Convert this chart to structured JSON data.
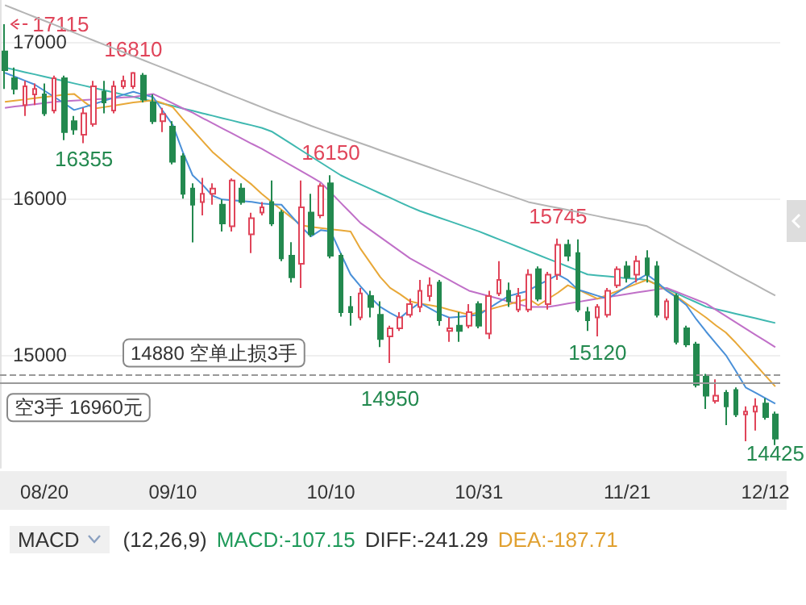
{
  "chart_data": {
    "type": "candlestick",
    "categories": [
      null,
      null,
      null,
      null,
      "08/20",
      null,
      null,
      null,
      null,
      null,
      null,
      null,
      null,
      null,
      null,
      null,
      null,
      "09/10",
      null,
      null,
      null,
      null,
      null,
      null,
      null,
      null,
      null,
      null,
      null,
      null,
      null,
      null,
      null,
      "10/10",
      null,
      null,
      null,
      null,
      null,
      null,
      null,
      null,
      null,
      null,
      null,
      null,
      null,
      null,
      "10/31",
      null,
      null,
      null,
      null,
      null,
      null,
      null,
      null,
      null,
      null,
      null,
      null,
      null,
      null,
      "11/21",
      null,
      null,
      null,
      null,
      null,
      null,
      null,
      null,
      null,
      null,
      null,
      null,
      null,
      "12/12",
      null
    ],
    "ohlc": [
      [
        16941,
        17115,
        16701,
        16821
      ],
      [
        16770,
        16838,
        16667,
        16701
      ],
      [
        16598,
        16753,
        16529,
        16718
      ],
      [
        16667,
        16736,
        16598,
        16701
      ],
      [
        16667,
        16736,
        16529,
        16546
      ],
      [
        16564,
        16787,
        16546,
        16770
      ],
      [
        16770,
        16787,
        16374,
        16426
      ],
      [
        16495,
        16529,
        16409,
        16443
      ],
      [
        16409,
        16581,
        16355,
        16546
      ],
      [
        16478,
        16753,
        16460,
        16718
      ],
      [
        16684,
        16753,
        16546,
        16615
      ],
      [
        16564,
        16753,
        16546,
        16718
      ],
      [
        16718,
        16787,
        16701,
        16753
      ],
      [
        16718,
        16810,
        16701,
        16804
      ],
      [
        16787,
        16804,
        16615,
        16633
      ],
      [
        16615,
        16667,
        16478,
        16495
      ],
      [
        16495,
        16581,
        16426,
        16540
      ],
      [
        16460,
        16495,
        16220,
        16237
      ],
      [
        16271,
        16290,
        16000,
        16031
      ],
      [
        16065,
        16099,
        15721,
        15962
      ],
      [
        15979,
        16133,
        15893,
        16031
      ],
      [
        16031,
        16099,
        15962,
        16065
      ],
      [
        15962,
        15996,
        15790,
        15842
      ],
      [
        15824,
        16130,
        15790,
        16117
      ],
      [
        16065,
        16099,
        15962,
        15979
      ],
      [
        15773,
        15910,
        15652,
        15876
      ],
      [
        15911,
        15979,
        15893,
        15945
      ],
      [
        15979,
        16117,
        15825,
        15842
      ],
      [
        15911,
        15928,
        15601,
        15619
      ],
      [
        15636,
        15722,
        15464,
        15498
      ],
      [
        15584,
        16117,
        15430,
        15945
      ],
      [
        15911,
        16031,
        15756,
        15773
      ],
      [
        15893,
        16099,
        15876,
        16082
      ],
      [
        16099,
        16150,
        15619,
        15636
      ],
      [
        15636,
        15653,
        15247,
        15275
      ],
      [
        15309,
        15378,
        15189,
        15275
      ],
      [
        15241,
        15430,
        15223,
        15395
      ],
      [
        15378,
        15412,
        15241,
        15309
      ],
      [
        15258,
        15344,
        15052,
        15103
      ],
      [
        15120,
        15189,
        14950,
        15172
      ],
      [
        15172,
        15275,
        15155,
        15241
      ],
      [
        15258,
        15361,
        15241,
        15327
      ],
      [
        15309,
        15481,
        15275,
        15412
      ],
      [
        15378,
        15498,
        15344,
        15447
      ],
      [
        15464,
        15481,
        15189,
        15223
      ],
      [
        15155,
        15241,
        15086,
        15172
      ],
      [
        15189,
        15275,
        15086,
        15155
      ],
      [
        15189,
        15327,
        15172,
        15275
      ],
      [
        15327,
        15344,
        15172,
        15189
      ],
      [
        15138,
        15412,
        15103,
        15378
      ],
      [
        15395,
        15601,
        15378,
        15481
      ],
      [
        15412,
        15464,
        15309,
        15344
      ],
      [
        15292,
        15430,
        15275,
        15378
      ],
      [
        15292,
        15550,
        15275,
        15515
      ],
      [
        15550,
        15567,
        15344,
        15361
      ],
      [
        15327,
        15533,
        15292,
        15515
      ],
      [
        15515,
        15745,
        15481,
        15705
      ],
      [
        15705,
        15739,
        15601,
        15636
      ],
      [
        15653,
        15740,
        15275,
        15292
      ],
      [
        15275,
        15309,
        15155,
        15223
      ],
      [
        15241,
        15327,
        15120,
        15309
      ],
      [
        15258,
        15430,
        15241,
        15412
      ],
      [
        15447,
        15567,
        15430,
        15550
      ],
      [
        15567,
        15601,
        15464,
        15498
      ],
      [
        15515,
        15636,
        15464,
        15601
      ],
      [
        15619,
        15670,
        15464,
        15515
      ],
      [
        15567,
        15601,
        15241,
        15258
      ],
      [
        15241,
        15361,
        15223,
        15344
      ],
      [
        15378,
        15395,
        15069,
        15086
      ],
      [
        15172,
        15189,
        15052,
        15069
      ],
      [
        15069,
        15086,
        14794,
        14811
      ],
      [
        14862,
        14880,
        14656,
        14742
      ],
      [
        14708,
        14846,
        14691,
        14742
      ],
      [
        14760,
        14777,
        14553,
        14673
      ],
      [
        14777,
        14794,
        14605,
        14622
      ],
      [
        14622,
        14673,
        14450,
        14639
      ],
      [
        14639,
        14725,
        14519,
        14673
      ],
      [
        14691,
        14725,
        14588,
        14605
      ],
      [
        14622,
        14639,
        14425,
        14467
      ]
    ],
    "colors": [
      "#23894f",
      "#23894f",
      "#e0455a",
      "#e0455a",
      "#23894f",
      "#e0455a",
      "#23894f",
      "#23894f",
      "#e0455a",
      "#e0455a",
      "#23894f",
      "#e0455a",
      "#e0455a",
      "#e0455a",
      "#23894f",
      "#23894f",
      "#e0455a",
      "#23894f",
      "#23894f",
      "#23894f",
      "#e0455a",
      "#e0455a",
      "#23894f",
      "#e0455a",
      "#23894f",
      "#e0455a",
      "#e0455a",
      "#23894f",
      "#23894f",
      "#23894f",
      "#e0455a",
      "#23894f",
      "#e0455a",
      "#23894f",
      "#23894f",
      "#23894f",
      "#e0455a",
      "#23894f",
      "#23894f",
      "#e0455a",
      "#e0455a",
      "#e0455a",
      "#e0455a",
      "#e0455a",
      "#23894f",
      "#e0455a",
      "#23894f",
      "#e0455a",
      "#23894f",
      "#e0455a",
      "#e0455a",
      "#23894f",
      "#e0455a",
      "#e0455a",
      "#23894f",
      "#e0455a",
      "#e0455a",
      "#23894f",
      "#23894f",
      "#23894f",
      "#e0455a",
      "#e0455a",
      "#e0455a",
      "#23894f",
      "#e0455a",
      "#23894f",
      "#23894f",
      "#e0455a",
      "#23894f",
      "#23894f",
      "#23894f",
      "#23894f",
      "#e0455a",
      "#23894f",
      "#23894f",
      "#e0455a",
      "#e0455a",
      "#23894f",
      "#23894f"
    ],
    "series": [
      {
        "type": "line",
        "color": "#b4b4b4",
        "values": [
          17237,
          17212,
          17187,
          17162,
          17137,
          17112,
          17087,
          17062,
          17036,
          17011,
          16986,
          16961,
          16936,
          16911,
          16886,
          16861,
          16836,
          16811,
          16786,
          16761,
          16736,
          16711,
          16685,
          16660,
          16635,
          16610,
          16585,
          16560,
          16537,
          16513,
          16490,
          16466,
          16443,
          16421,
          16399,
          16377,
          16355,
          16333,
          16310,
          16288,
          16266,
          16244,
          16222,
          16200,
          16178,
          16156,
          16134,
          16112,
          16090,
          16067,
          16045,
          16023,
          16001,
          15979,
          15966,
          15953,
          15941,
          15928,
          15915,
          15902,
          15889,
          15876,
          15864,
          15851,
          15838,
          15825,
          15791,
          15757,
          15722,
          15688,
          15654,
          15620,
          15586,
          15551,
          15517,
          15483,
          15449,
          15415,
          15381
        ]
      },
      {
        "type": "line",
        "color": "#3fb8b0",
        "values": [
          16838,
          16824,
          16809,
          16795,
          16780,
          16766,
          16752,
          16737,
          16723,
          16708,
          16694,
          16680,
          16665,
          16651,
          16636,
          16622,
          16608,
          16593,
          16577,
          16562,
          16546,
          16531,
          16515,
          16500,
          16484,
          16469,
          16453,
          16430,
          16390,
          16350,
          16310,
          16270,
          16230,
          16190,
          16150,
          16120,
          16091,
          16063,
          16034,
          16006,
          15977,
          15948,
          15922,
          15900,
          15878,
          15857,
          15835,
          15813,
          15791,
          15766,
          15741,
          15716,
          15691,
          15666,
          15641,
          15616,
          15591,
          15566,
          15541,
          15516,
          15510,
          15504,
          15498,
          15492,
          15487,
          15481,
          15452,
          15424,
          15395,
          15366,
          15338,
          15309,
          15294,
          15280,
          15265,
          15250,
          15236,
          15221,
          15206
        ]
      },
      {
        "type": "line",
        "color": "#c070c8",
        "values": [
          16581,
          16589,
          16596,
          16604,
          16611,
          16619,
          16623,
          16627,
          16631,
          16635,
          16639,
          16643,
          16647,
          16650,
          16660,
          16670,
          16640,
          16609,
          16578,
          16550,
          16516,
          16483,
          16450,
          16417,
          16384,
          16351,
          16320,
          16284,
          16248,
          16212,
          16176,
          16140,
          16103,
          16039,
          15974,
          15910,
          15845,
          15800,
          15755,
          15710,
          15665,
          15620,
          15585,
          15550,
          15515,
          15480,
          15446,
          15412,
          15395,
          15378,
          15361,
          15343,
          15326,
          15309,
          15309,
          15309,
          15319,
          15330,
          15340,
          15351,
          15361,
          15371,
          15381,
          15391,
          15401,
          15410,
          15420,
          15430,
          15405,
          15380,
          15355,
          15330,
          15290,
          15250,
          15210,
          15170,
          15130,
          15091,
          15051
        ]
      },
      {
        "type": "line",
        "color": "#e8a838",
        "values": [
          16619,
          16627,
          16634,
          16642,
          16650,
          16657,
          16665,
          16670,
          16620,
          16575,
          16585,
          16595,
          16605,
          16615,
          16622,
          16630,
          16610,
          16585,
          16510,
          16440,
          16370,
          16300,
          16245,
          16190,
          16140,
          16090,
          16031,
          15980,
          15930,
          15880,
          15830,
          15820,
          15812,
          15805,
          15798,
          15790,
          15680,
          15590,
          15500,
          15430,
          15390,
          15345,
          15330,
          15320,
          15309,
          15290,
          15275,
          15258,
          15275,
          15292,
          15309,
          15325,
          15343,
          15361,
          15320,
          15360,
          15400,
          15447,
          15420,
          15390,
          15361,
          15385,
          15409,
          15433,
          15457,
          15481,
          15450,
          15415,
          15378,
          15330,
          15285,
          15240,
          15190,
          15145,
          15080,
          15010,
          14940,
          14870,
          14800
        ]
      },
      {
        "type": "line",
        "color": "#4a90d8",
        "values": [
          16805,
          16780,
          16755,
          16730,
          16690,
          16650,
          16610,
          16567,
          16585,
          16605,
          16625,
          16645,
          16665,
          16684,
          16665,
          16650,
          16560,
          16470,
          16300,
          16150,
          16090,
          16020,
          15995,
          15990,
          15985,
          15980,
          15970,
          15965,
          15962,
          15890,
          15820,
          15760,
          15800,
          15790,
          15650,
          15516,
          15440,
          15370,
          15309,
          15270,
          15237,
          15290,
          15335,
          15300,
          15265,
          15240,
          15245,
          15252,
          15258,
          15300,
          15340,
          15378,
          15395,
          15412,
          15450,
          15480,
          15515,
          15480,
          15420,
          15400,
          15380,
          15361,
          15400,
          15440,
          15480,
          15516,
          15470,
          15412,
          15370,
          15320,
          15230,
          15150,
          15075,
          15000,
          14900,
          14794,
          14760,
          14725,
          14691
        ]
      }
    ],
    "ylim": [
      14280,
      17270
    ],
    "yticks": [
      15000,
      16000,
      17000
    ],
    "grid": "y",
    "marker": "none",
    "line_style": "solid",
    "ref_lines": [
      {
        "axis": "y",
        "value": 14880,
        "label": "14880 空单止损3手",
        "line_style": "dashed",
        "color": "#999999"
      },
      {
        "axis": "y",
        "value": 14820,
        "label": "空3手 16960元",
        "line_style": "solid",
        "color": "#999999"
      }
    ],
    "annotations": [
      "MACD",
      "(12,26,9)",
      "MACD:-107.15",
      "DIFF:-241.29",
      "DEA:-187.71",
      {
        "text": "17115",
        "y": 17115
      },
      {
        "text": "16810",
        "y": 16810
      },
      {
        "text": "16355",
        "y": 16355
      },
      {
        "text": "16150",
        "y": 16150
      },
      {
        "text": "14950",
        "y": 14950
      },
      {
        "text": "15745",
        "y": 15745
      },
      {
        "text": "15120",
        "y": 15120
      },
      {
        "text": "14425",
        "y": 14425
      }
    ]
  }
}
